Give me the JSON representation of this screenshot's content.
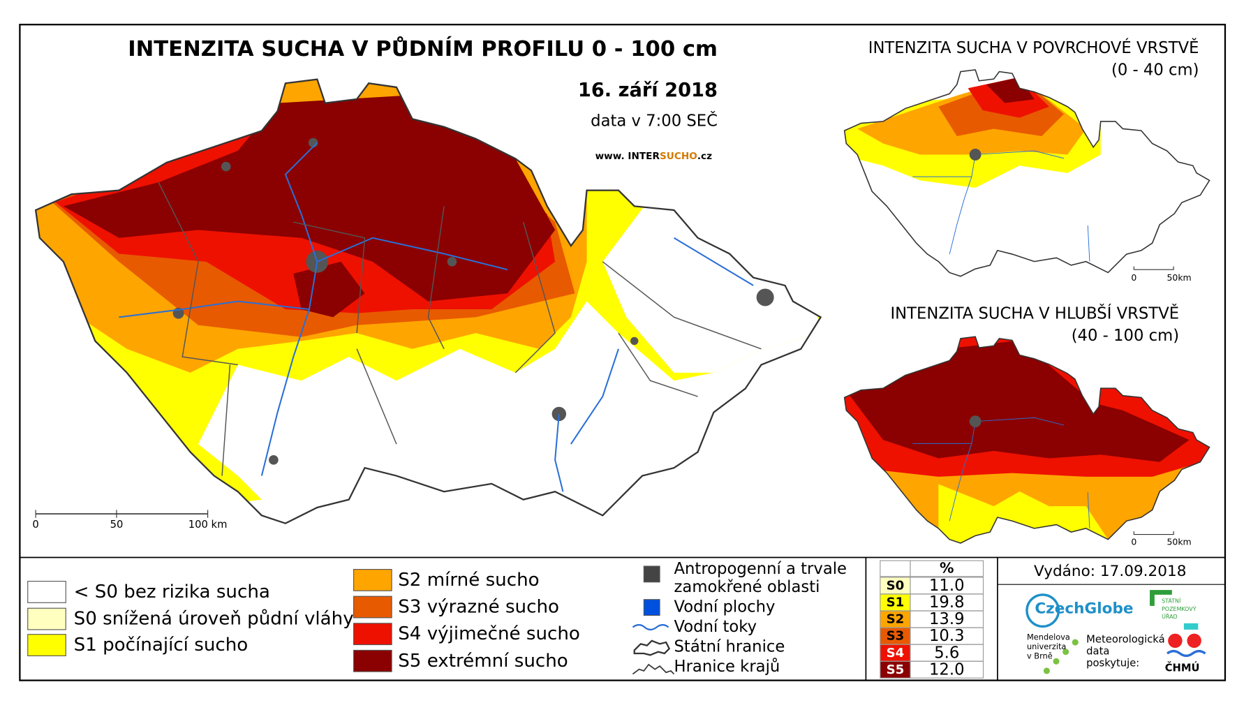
{
  "main_map": {
    "title": "INTENZITA SUCHA V PŮDNÍM PROFILU 0 - 100 cm",
    "date": "16. září 2018",
    "data_time": "data v 7:00 SEČ",
    "website_prefix": "www. INTER",
    "website_highlight": "SUCHO",
    "website_suffix": ".cz",
    "scale": [
      "0",
      "50",
      "100 km"
    ]
  },
  "inset_top": {
    "title": "INTENZITA SUCHA V POVRCHOVÉ VRSTVĚ",
    "depth": "(0 - 40 cm)",
    "scale": [
      "0",
      "50km"
    ]
  },
  "inset_bottom": {
    "title": "INTENZITA SUCHA V HLUBŠÍ VRSTVĚ",
    "depth": "(40 - 100 cm)",
    "scale": [
      "0",
      "50km"
    ]
  },
  "legend": {
    "drought_classes": [
      "< S0 bez rizika sucha",
      "S0 snížená úroveň půdní vláhy",
      "S1 počínající sucho",
      "S2 mírné sucho",
      "S3 výrazné sucho",
      "S4 výjimečné sucho",
      "S5 extrémní sucho"
    ],
    "features": [
      [
        "Antropogenní a trvale",
        "zamokřené oblasti"
      ],
      [
        "Vodní plochy"
      ],
      [
        "Vodní toky"
      ],
      [
        "Státní hranice"
      ],
      [
        "Hranice krajů"
      ]
    ]
  },
  "table": {
    "header": "%",
    "rows": [
      [
        "S0",
        "11.0"
      ],
      [
        "S1",
        "19.8"
      ],
      [
        "S2",
        "13.9"
      ],
      [
        "S3",
        "10.3"
      ],
      [
        "S4",
        "5.6"
      ],
      [
        "S5",
        "12.0"
      ]
    ]
  },
  "issued": "Vydáno: 17.09.2018",
  "logos": {
    "czechglobe": "CzechGlobe",
    "mendel": [
      "Mendelova",
      "univerzita",
      "v Brně"
    ],
    "spu": [
      "STÁTNÍ",
      "POZEMKOVÝ",
      "ÚŘAD"
    ],
    "meteo": [
      "Meteorologická",
      "data",
      "poskytuje:"
    ],
    "chmu": "ČHMÚ"
  }
}
